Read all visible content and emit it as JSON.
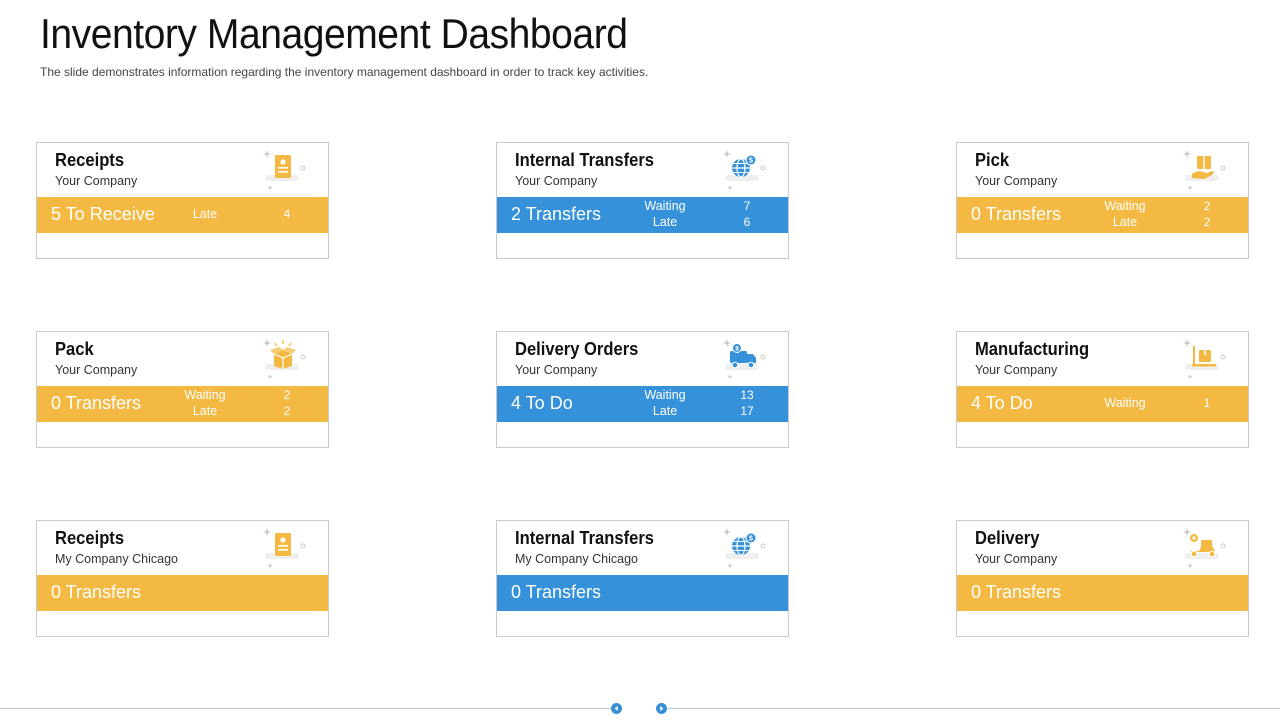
{
  "header": {
    "title": "Inventory Management Dashboard",
    "subtitle": "The slide demonstrates information regarding the inventory management dashboard in order to track key activities."
  },
  "colors": {
    "orange": "#f4b942",
    "blue": "#3591d9",
    "border": "#c9c9c9"
  },
  "cards": [
    {
      "title": "Receipts",
      "subtitle": "Your Company",
      "icon": "receipt-icon",
      "bar_color": "orange",
      "main": "5 To Receive",
      "labels": [
        "Late"
      ],
      "values": [
        "4"
      ]
    },
    {
      "title": "Internal Transfers",
      "subtitle": "Your Company",
      "icon": "globe-dollar-icon",
      "bar_color": "blue",
      "main": "2 Transfers",
      "labels": [
        "Waiting",
        "Late"
      ],
      "values": [
        "7",
        "6"
      ]
    },
    {
      "title": "Pick",
      "subtitle": "Your Company",
      "icon": "hand-box-icon",
      "bar_color": "orange",
      "main": "0 Transfers",
      "labels": [
        "Waiting",
        "Late"
      ],
      "values": [
        "2",
        "2"
      ]
    },
    {
      "title": "Pack",
      "subtitle": "Your Company",
      "icon": "open-box-icon",
      "bar_color": "orange",
      "main": "0 Transfers",
      "labels": [
        "Waiting",
        "Late"
      ],
      "values": [
        "2",
        "2"
      ]
    },
    {
      "title": "Delivery Orders",
      "subtitle": "Your Company",
      "icon": "delivery-truck-icon",
      "bar_color": "blue",
      "main": "4 To Do",
      "labels": [
        "Waiting",
        "Late"
      ],
      "values": [
        "13",
        "17"
      ]
    },
    {
      "title": "Manufacturing",
      "subtitle": "Your Company",
      "icon": "conveyor-box-icon",
      "bar_color": "orange",
      "main": "4 To Do",
      "labels": [
        "Waiting"
      ],
      "values": [
        "1"
      ]
    },
    {
      "title": "Receipts",
      "subtitle": "My Company Chicago",
      "icon": "receipt-icon",
      "bar_color": "orange",
      "main": "0 Transfers",
      "labels": [],
      "values": []
    },
    {
      "title": "Internal Transfers",
      "subtitle": "My Company Chicago",
      "icon": "globe-dollar-icon",
      "bar_color": "blue",
      "main": "0 Transfers",
      "labels": [],
      "values": []
    },
    {
      "title": "Delivery",
      "subtitle": "Your Company",
      "icon": "delivery-scooter-icon",
      "bar_color": "orange",
      "main": "0 Transfers",
      "labels": [],
      "values": []
    }
  ],
  "nav": {
    "prev_icon": "prev-arrow-icon",
    "next_icon": "next-arrow-icon"
  }
}
